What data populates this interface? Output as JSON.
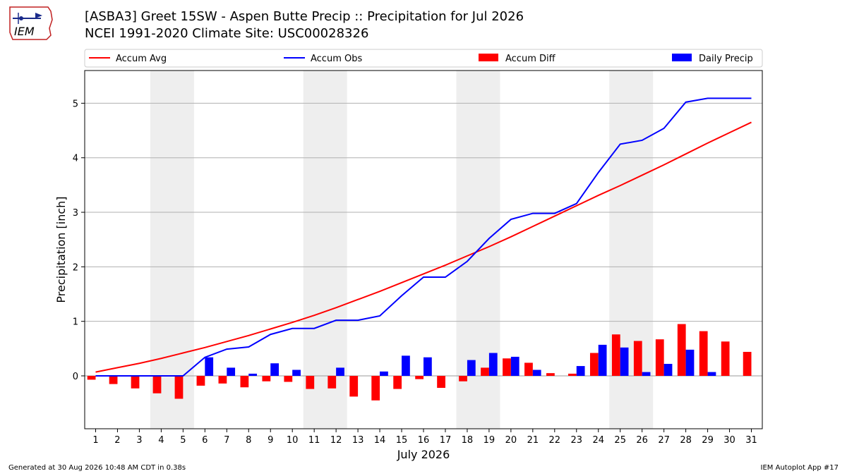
{
  "header": {
    "title_line1": "[ASBA3] Greet 15SW - Aspen Butte Precip :: Precipitation for Jul 2026",
    "title_line2": "NCEI 1991-2020 Climate Site: USC00028326",
    "logo_text": "IEM"
  },
  "footer": {
    "generated": "Generated at 30 Aug 2026 10:48 AM CDT in 0.38s",
    "app": "IEM Autoplot App #17"
  },
  "colors": {
    "accum_avg": "#ff0000",
    "accum_obs": "#0000ff",
    "accum_diff": "#ff0000",
    "daily_precip": "#0000ff",
    "weekend_shade": "#eeeeee",
    "grid": "#b0b0b0"
  },
  "chart_data": {
    "type": "bar",
    "xlabel": "July 2026",
    "ylabel": "Precipitation [inch]",
    "x": [
      1,
      2,
      3,
      4,
      5,
      6,
      7,
      8,
      9,
      10,
      11,
      12,
      13,
      14,
      15,
      16,
      17,
      18,
      19,
      20,
      21,
      22,
      23,
      24,
      25,
      26,
      27,
      28,
      29,
      30,
      31
    ],
    "xlim": [
      0.5,
      31.5
    ],
    "ylim": [
      -0.97,
      5.6
    ],
    "yticks": [
      0,
      1,
      2,
      3,
      4,
      5
    ],
    "grid": "horizontal",
    "legend_position": "top",
    "shaded_days": [
      [
        4,
        5
      ],
      [
        11,
        12
      ],
      [
        18,
        19
      ],
      [
        25,
        26
      ]
    ],
    "series": [
      {
        "name": "Accum Avg",
        "kind": "line",
        "values": [
          0.07,
          0.15,
          0.23,
          0.32,
          0.42,
          0.52,
          0.63,
          0.74,
          0.86,
          0.98,
          1.11,
          1.25,
          1.4,
          1.55,
          1.71,
          1.87,
          2.03,
          2.2,
          2.37,
          2.55,
          2.74,
          2.93,
          3.12,
          3.31,
          3.49,
          3.68,
          3.87,
          4.07,
          4.27,
          4.46,
          4.65
        ]
      },
      {
        "name": "Accum Obs",
        "kind": "line",
        "values": [
          0.0,
          0.0,
          0.0,
          0.0,
          0.0,
          0.34,
          0.49,
          0.53,
          0.76,
          0.87,
          0.87,
          1.02,
          1.02,
          1.1,
          1.47,
          1.81,
          1.81,
          2.1,
          2.52,
          2.87,
          2.98,
          2.98,
          3.16,
          3.73,
          4.25,
          4.32,
          4.54,
          5.02,
          5.09,
          5.09,
          5.09
        ]
      },
      {
        "name": "Accum Diff",
        "kind": "bar",
        "values": [
          -0.07,
          -0.15,
          -0.23,
          -0.32,
          -0.42,
          -0.18,
          -0.14,
          -0.21,
          -0.1,
          -0.11,
          -0.24,
          -0.23,
          -0.38,
          -0.45,
          -0.24,
          -0.06,
          -0.22,
          -0.1,
          0.15,
          0.32,
          0.24,
          0.05,
          0.04,
          0.42,
          0.76,
          0.64,
          0.67,
          0.95,
          0.82,
          0.63,
          0.44
        ]
      },
      {
        "name": "Daily Precip",
        "kind": "bar",
        "values": [
          0,
          0,
          0,
          0,
          0,
          0.34,
          0.15,
          0.04,
          0.23,
          0.11,
          0,
          0.15,
          0,
          0.08,
          0.37,
          0.34,
          0,
          0.29,
          0.42,
          0.35,
          0.11,
          0,
          0.18,
          0.57,
          0.52,
          0.07,
          0.22,
          0.48,
          0.07,
          0,
          0
        ]
      }
    ]
  }
}
